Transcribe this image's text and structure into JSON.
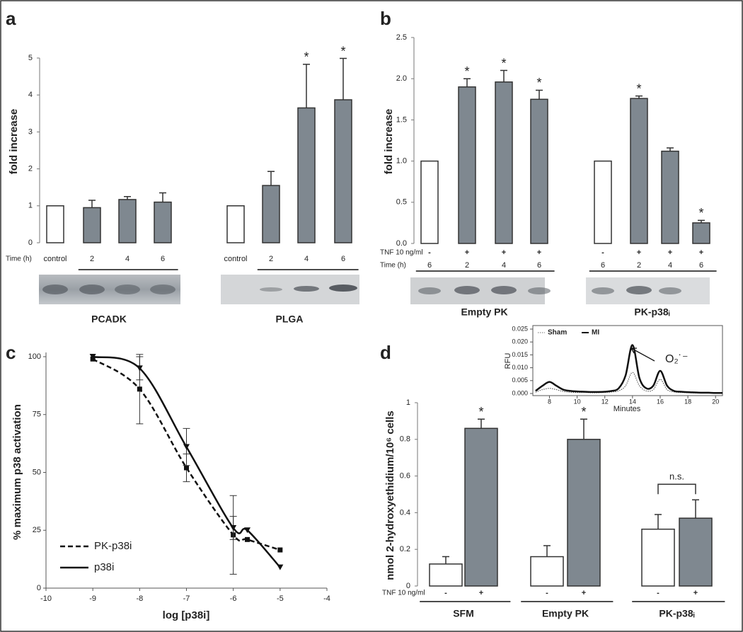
{
  "chart_data": [
    {
      "type": "bar",
      "label": "a",
      "y_label": "fold increase",
      "ylim": [
        0,
        5
      ],
      "yticks": [
        0,
        1,
        2,
        3,
        4,
        5
      ],
      "row_labels": [
        "Time (h)"
      ],
      "underline_all": false,
      "groups": [
        {
          "name": "PCADK",
          "rows": [
            [
              "control",
              "2",
              "4",
              "6"
            ]
          ],
          "values": [
            1,
            0.95,
            1.17,
            1.1
          ],
          "errors": [
            null,
            0.2,
            0.08,
            0.25
          ],
          "colors": [
            "#ffffff",
            "#7f8890",
            "#7f8890",
            "#7f8890"
          ],
          "significance": [
            null,
            null,
            null,
            null
          ]
        },
        {
          "name": "PLGA",
          "rows": [
            [
              "control",
              "2",
              "4",
              "6"
            ]
          ],
          "values": [
            1,
            1.55,
            3.65,
            3.87
          ],
          "errors": [
            null,
            0.38,
            1.18,
            1.12
          ],
          "colors": [
            "#ffffff",
            "#7f8890",
            "#7f8890",
            "#7f8890"
          ],
          "significance": [
            null,
            null,
            "*",
            "*"
          ]
        }
      ]
    },
    {
      "type": "bar",
      "label": "b",
      "y_label": "fold increase",
      "ylim": [
        0,
        2.5
      ],
      "yticks": [
        {
          "value": 0,
          "label": "0.0"
        },
        0.5,
        {
          "value": 1,
          "label": "1.0"
        },
        1.5,
        {
          "value": 2,
          "label": "2.0"
        },
        2.5
      ],
      "row_labels": [
        "TNF 10 ng/ml",
        "Time (h)"
      ],
      "underline_all": true,
      "groups": [
        {
          "name": "Empty PK",
          "rows": [
            [
              "-",
              "+",
              "+",
              "+"
            ],
            [
              "6",
              "2",
              "4",
              "6"
            ]
          ],
          "values": [
            1,
            1.9,
            1.96,
            1.75
          ],
          "errors": [
            null,
            0.1,
            0.14,
            0.11
          ],
          "colors": [
            "#ffffff",
            "#7f8890",
            "#7f8890",
            "#7f8890"
          ],
          "significance": [
            null,
            "*",
            "*",
            "*"
          ]
        },
        {
          "name": "PK-p38ᵢ",
          "rows": [
            [
              "-",
              "+",
              "+",
              "+"
            ],
            [
              "6",
              "2",
              "4",
              "6"
            ]
          ],
          "values": [
            1,
            1.76,
            1.12,
            0.25
          ],
          "errors": [
            null,
            0.03,
            0.04,
            0.03
          ],
          "colors": [
            "#ffffff",
            "#7f8890",
            "#7f8890",
            "#7f8890"
          ],
          "significance": [
            null,
            "*",
            null,
            "*"
          ]
        }
      ]
    },
    {
      "type": "line",
      "label": "c",
      "x_label": "log [p38i]",
      "y_label": "% maximum p38 activation",
      "xlim": [
        -10,
        -4
      ],
      "xticks": [
        -10,
        -9,
        -8,
        -7,
        -6,
        -5,
        -4
      ],
      "ylim": [
        0,
        100
      ],
      "yticks": [
        0,
        25,
        50,
        75,
        100
      ],
      "box": false,
      "legend": "lower left",
      "x": [
        -9,
        -8,
        -7,
        -6,
        -5.7,
        -5
      ],
      "series": [
        {
          "name": "PK-p38i",
          "color": "#111111",
          "style": "dashed",
          "marker": "square",
          "values": [
            99,
            86,
            52,
            23,
            21,
            16.5
          ],
          "errors": [
            null,
            15,
            6,
            17,
            null,
            null
          ]
        },
        {
          "name": "p38i",
          "color": "#111111",
          "style": "solid",
          "marker": "triangle",
          "values": [
            100,
            95,
            61,
            26,
            25,
            9
          ],
          "errors": [
            null,
            5,
            8,
            5,
            null,
            null
          ]
        }
      ]
    },
    {
      "type": "bar",
      "label": "d",
      "y_label": "nmol 2-hydroxyethidium/10⁶ cells",
      "ylim": [
        0,
        1
      ],
      "yticks": [
        0,
        0.2,
        0.4,
        0.6,
        0.8,
        1
      ],
      "row_labels": [
        "TNF 10 ng/ml"
      ],
      "underline_all": true,
      "groups": [
        {
          "name": "SFM",
          "rows": [
            [
              "-",
              "+"
            ]
          ],
          "values": [
            0.12,
            0.86
          ],
          "errors": [
            0.04,
            0.05
          ],
          "colors": [
            "#ffffff",
            "#7f8890"
          ],
          "significance": [
            null,
            "*"
          ]
        },
        {
          "name": "Empty PK",
          "rows": [
            [
              "-",
              "+"
            ]
          ],
          "values": [
            0.16,
            0.8
          ],
          "errors": [
            0.06,
            0.11
          ],
          "colors": [
            "#ffffff",
            "#7f8890"
          ],
          "significance": [
            null,
            "*"
          ]
        },
        {
          "name": "PK-p38ᵢ",
          "rows": [
            [
              "-",
              "+"
            ]
          ],
          "values": [
            0.31,
            0.37
          ],
          "errors": [
            0.08,
            0.1
          ],
          "colors": [
            "#ffffff",
            "#7f8890"
          ],
          "significance": [
            null,
            null
          ],
          "bracket": "n.s."
        }
      ]
    },
    {
      "type": "line",
      "x_label": "Minutes",
      "y_label": "RFU",
      "annotation": "O₂˙⁻",
      "xlim": [
        6.8,
        20.5
      ],
      "xticks": [
        8,
        10,
        12,
        14,
        16,
        18,
        20
      ],
      "ylim": [
        0,
        0.025
      ],
      "yticks": [
        {
          "value": 0,
          "label": "0.000"
        },
        0.005,
        {
          "value": 0.01,
          "label": "0.010"
        },
        0.015,
        {
          "value": 0.02,
          "label": "0.020"
        },
        0.025
      ],
      "box": true,
      "legend": "upper left",
      "x": [
        7,
        7.5,
        8,
        8.5,
        9,
        9.5,
        10,
        10.5,
        11,
        11.5,
        12,
        12.5,
        13,
        13.5,
        14,
        14.5,
        15,
        15.5,
        16,
        16.5,
        17,
        17.5,
        18,
        18.5,
        19,
        19.5,
        20,
        20.5
      ],
      "series": [
        {
          "name": "Sham",
          "color": "#444444",
          "style": "dotted",
          "values": [
            0.0005,
            0.0015,
            0.002,
            0.0015,
            0.0008,
            0.0005,
            0.0004,
            0.0004,
            0.0003,
            0.0003,
            0.0004,
            0.0006,
            0.001,
            0.003,
            0.0082,
            0.003,
            0.001,
            0.0015,
            0.0055,
            0.0015,
            0.0006,
            0.0004,
            0.0003,
            0.0002,
            0.0002,
            0.0002,
            0.0001,
            0.0001
          ]
        },
        {
          "name": "MI",
          "color": "#111111",
          "style": "thick",
          "values": [
            0.001,
            0.003,
            0.0045,
            0.003,
            0.0015,
            0.001,
            0.0008,
            0.0007,
            0.0006,
            0.0006,
            0.0007,
            0.001,
            0.002,
            0.007,
            0.0188,
            0.006,
            0.002,
            0.003,
            0.0088,
            0.003,
            0.001,
            0.0007,
            0.0005,
            0.0004,
            0.0003,
            0.0003,
            0.0002,
            0.0002
          ]
        }
      ]
    }
  ]
}
